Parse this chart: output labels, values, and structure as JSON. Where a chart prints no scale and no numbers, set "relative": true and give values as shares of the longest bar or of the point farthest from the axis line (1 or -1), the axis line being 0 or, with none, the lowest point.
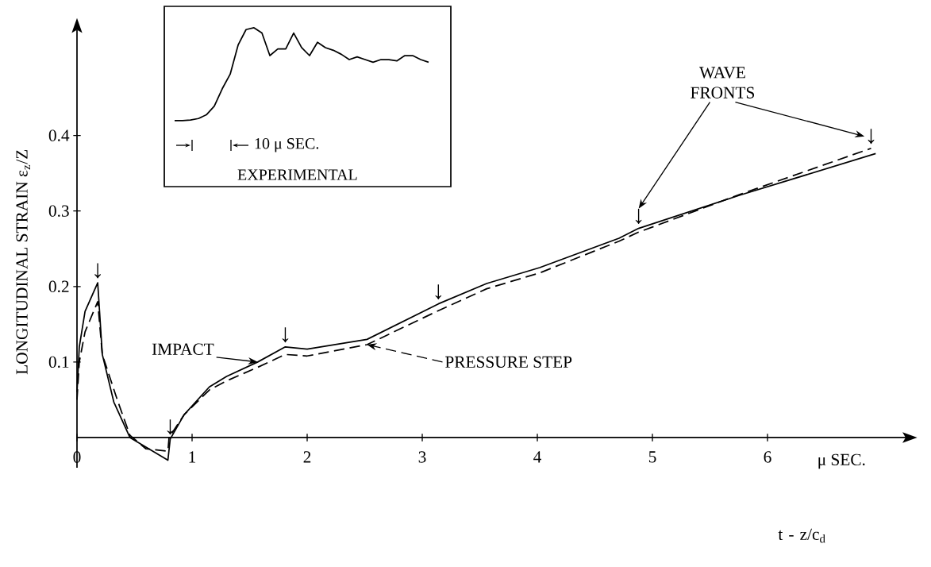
{
  "chart_data": [
    {
      "type": "line",
      "xlabel": "μ SEC.",
      "ylabel": "LONGITUDINAL STRAIN ε$_{z}$/Z",
      "xlim": [
        0,
        7.2
      ],
      "ylim": [
        -0.04,
        0.54
      ],
      "xticks": [
        0,
        1,
        2,
        3,
        4,
        5,
        6
      ],
      "yticks": [
        0.1,
        0.2,
        0.3,
        0.4
      ],
      "marker": "none",
      "series": [
        {
          "name": "IMPACT",
          "color": "#000000",
          "line_style": "solid",
          "x": [
            0,
            0.02,
            0.07,
            0.18,
            0.22,
            0.32,
            0.46,
            0.79,
            0.81,
            0.93,
            1.15,
            1.3,
            1.57,
            1.81,
            2.0,
            2.52,
            3.14,
            3.56,
            4.02,
            4.71,
            4.88,
            5.76,
            6.94
          ],
          "values": [
            0.06,
            0.12,
            0.167,
            0.205,
            0.11,
            0.047,
            0.0,
            -0.03,
            -0.002,
            0.03,
            0.067,
            0.081,
            0.1,
            0.12,
            0.117,
            0.13,
            0.177,
            0.204,
            0.225,
            0.264,
            0.277,
            0.321,
            0.376
          ]
        },
        {
          "name": "PRESSURE STEP",
          "color": "#000000",
          "line_style": "dashed",
          "x": [
            0,
            0.02,
            0.07,
            0.18,
            0.22,
            0.35,
            0.46,
            0.6,
            0.79,
            0.8,
            0.93,
            1.15,
            1.3,
            1.57,
            1.81,
            2.0,
            2.52,
            3.14,
            3.56,
            4.02,
            4.71,
            4.88,
            5.76,
            6.9
          ],
          "values": [
            0.05,
            0.1,
            0.14,
            0.18,
            0.11,
            0.05,
            0.003,
            -0.015,
            -0.018,
            0.0,
            0.03,
            0.063,
            0.075,
            0.093,
            0.11,
            0.108,
            0.123,
            0.168,
            0.197,
            0.218,
            0.26,
            0.272,
            0.322,
            0.383
          ]
        }
      ],
      "annotations": [
        "t - z/c$_{d}$",
        "WAVE FRONTS",
        {
          "text": "↓",
          "x": 0.18,
          "y": 0.205
        },
        {
          "text": "↓",
          "x": 0.81,
          "y": -0.002
        },
        {
          "text": "↓",
          "x": 1.81,
          "y": 0.12
        },
        {
          "text": "↓",
          "x": 3.14,
          "y": 0.177
        },
        {
          "text": "↓",
          "x": 4.88,
          "y": 0.277
        },
        {
          "text": "↓",
          "x": 6.9,
          "y": 0.383
        }
      ]
    },
    {
      "type": "line",
      "relative": true,
      "xlabel": "EXPERIMENTAL",
      "color": "#000000",
      "categories": [
        null,
        null,
        null,
        null,
        null,
        null,
        null,
        null,
        null,
        null,
        null,
        null,
        null,
        null,
        null,
        null,
        null,
        null,
        null,
        null,
        null,
        null,
        null,
        null,
        null,
        null,
        null,
        null,
        null,
        null,
        null,
        null,
        null
      ],
      "values": [
        0,
        0,
        0.006,
        0.023,
        0.063,
        0.157,
        0.343,
        0.5,
        0.814,
        0.98,
        1.0,
        0.943,
        0.7,
        0.771,
        0.771,
        0.943,
        0.786,
        0.7,
        0.843,
        0.786,
        0.757,
        0.714,
        0.657,
        0.686,
        0.657,
        0.629,
        0.657,
        0.657,
        0.643,
        0.7,
        0.7,
        0.657,
        0.629
      ],
      "annotations": [
        "10 μ SEC."
      ]
    }
  ]
}
